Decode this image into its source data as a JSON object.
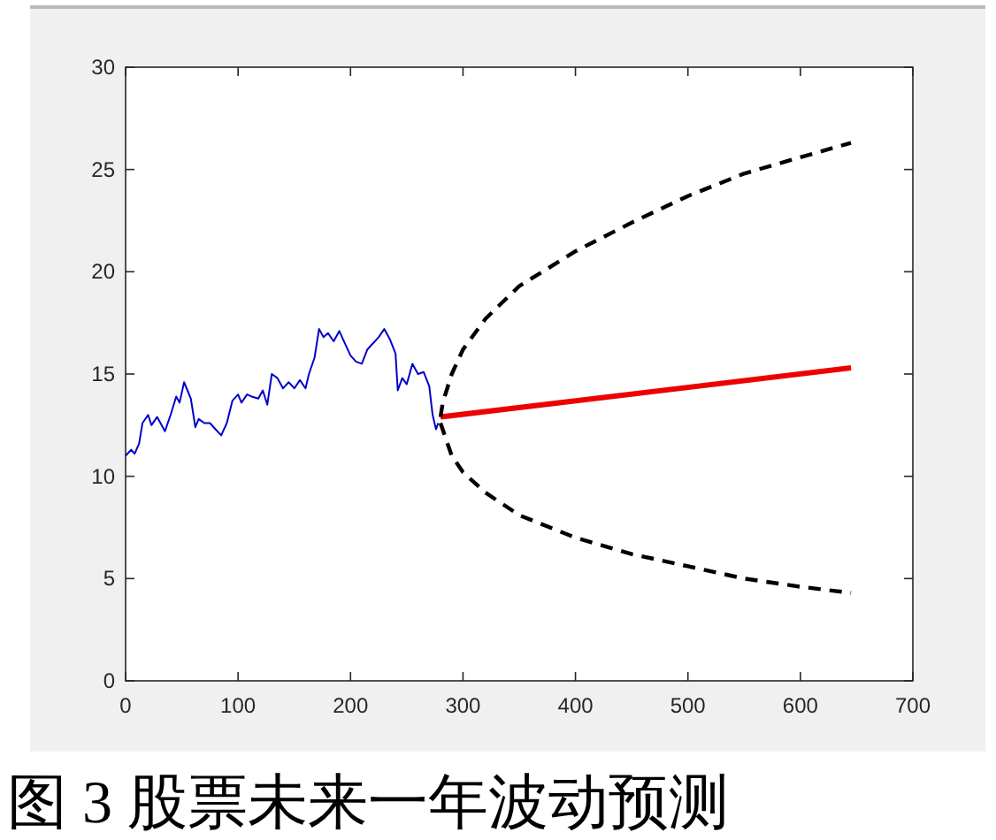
{
  "chart_data": {
    "type": "line",
    "title": "图 3  股票未来一年波动预测",
    "xlim": [
      0,
      700
    ],
    "xticks": [
      0,
      100,
      200,
      300,
      400,
      500,
      600,
      700
    ],
    "ylim": [
      0,
      30
    ],
    "yticks": [
      0,
      5,
      10,
      15,
      20,
      25,
      30
    ],
    "grid": false,
    "series": [
      {
        "color": "#0000cc",
        "line_style": "solid",
        "x": [
          0,
          5,
          8,
          12,
          15,
          20,
          23,
          28,
          32,
          35,
          40,
          45,
          48,
          52,
          55,
          58,
          62,
          65,
          70,
          75,
          80,
          85,
          90,
          95,
          100,
          103,
          108,
          112,
          118,
          122,
          126,
          130,
          135,
          140,
          145,
          150,
          155,
          160,
          163,
          168,
          172,
          176,
          180,
          185,
          190,
          195,
          200,
          205,
          210,
          215,
          220,
          225,
          230,
          235,
          240,
          242,
          246,
          250,
          255,
          260,
          265,
          270,
          273,
          276,
          278
        ],
        "values": [
          11.0,
          11.3,
          11.1,
          11.6,
          12.6,
          13.0,
          12.5,
          12.9,
          12.5,
          12.2,
          13.0,
          13.9,
          13.6,
          14.6,
          14.2,
          13.8,
          12.4,
          12.8,
          12.6,
          12.6,
          12.3,
          12.0,
          12.6,
          13.7,
          14.0,
          13.6,
          14.0,
          13.9,
          13.8,
          14.2,
          13.5,
          15.0,
          14.8,
          14.3,
          14.6,
          14.3,
          14.7,
          14.3,
          15.0,
          15.8,
          17.2,
          16.8,
          17.0,
          16.6,
          17.1,
          16.5,
          15.9,
          15.6,
          15.5,
          16.2,
          16.5,
          16.8,
          17.2,
          16.7,
          16.0,
          14.2,
          14.8,
          14.5,
          15.5,
          15.0,
          15.1,
          14.4,
          13.0,
          12.3,
          12.6
        ]
      },
      {
        "color": "#ee0000",
        "line_style": "solid",
        "x": [
          280,
          645
        ],
        "values": [
          12.9,
          15.3
        ]
      },
      {
        "color": "#000000",
        "line_style": "dashed",
        "x": [
          280,
          282,
          290,
          300,
          320,
          350,
          400,
          450,
          500,
          550,
          600,
          645
        ],
        "values": [
          12.9,
          13.6,
          15.0,
          16.2,
          17.7,
          19.3,
          21.0,
          22.4,
          23.7,
          24.8,
          25.6,
          26.3
        ]
      },
      {
        "color": "#000000",
        "line_style": "dashed",
        "x": [
          280,
          290,
          300,
          320,
          350,
          400,
          450,
          500,
          550,
          600,
          645
        ],
        "values": [
          12.6,
          11.0,
          10.2,
          9.2,
          8.1,
          7.0,
          6.2,
          5.6,
          5.0,
          4.6,
          4.3
        ]
      }
    ]
  }
}
